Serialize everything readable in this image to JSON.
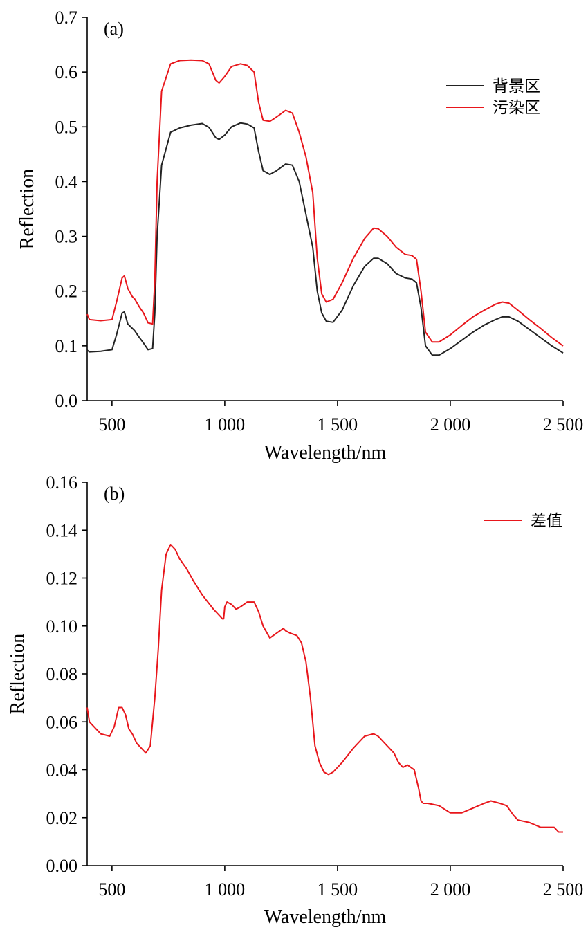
{
  "chart_data": [
    {
      "panel_label": "(a)",
      "type": "line",
      "xlabel": "Wavelength/nm",
      "ylabel": "Reflection",
      "xlim": [
        390,
        2500
      ],
      "ylim": [
        0,
        0.7
      ],
      "xticks": [
        500,
        1000,
        1500,
        2000,
        2500
      ],
      "xtick_labels": [
        "500",
        "1 000",
        "1 500",
        "2 000",
        "2 500"
      ],
      "yticks": [
        0,
        0.1,
        0.2,
        0.3,
        0.4,
        0.5,
        0.6,
        0.7
      ],
      "ytick_labels": [
        "0.0",
        "0.1",
        "0.2",
        "0.3",
        "0.4",
        "0.5",
        "0.6",
        "0.7"
      ],
      "grid": false,
      "legend_position": "top-right",
      "series": [
        {
          "name": "背景区",
          "color": "#222222",
          "x": [
            390,
            400,
            450,
            500,
            520,
            545,
            555,
            570,
            590,
            600,
            620,
            640,
            660,
            680,
            690,
            700,
            720,
            760,
            800,
            850,
            900,
            930,
            960,
            975,
            1000,
            1030,
            1070,
            1100,
            1130,
            1150,
            1170,
            1200,
            1230,
            1270,
            1300,
            1330,
            1360,
            1390,
            1410,
            1430,
            1450,
            1480,
            1520,
            1570,
            1620,
            1660,
            1680,
            1720,
            1760,
            1800,
            1830,
            1850,
            1870,
            1890,
            1920,
            1950,
            2000,
            2050,
            2100,
            2150,
            2200,
            2230,
            2260,
            2300,
            2350,
            2400,
            2450,
            2500
          ],
          "y": [
            0.092,
            0.089,
            0.09,
            0.093,
            0.12,
            0.16,
            0.162,
            0.14,
            0.132,
            0.128,
            0.116,
            0.105,
            0.093,
            0.095,
            0.16,
            0.3,
            0.43,
            0.49,
            0.498,
            0.503,
            0.506,
            0.499,
            0.48,
            0.477,
            0.485,
            0.5,
            0.507,
            0.505,
            0.498,
            0.455,
            0.42,
            0.413,
            0.42,
            0.432,
            0.43,
            0.4,
            0.34,
            0.28,
            0.2,
            0.16,
            0.145,
            0.143,
            0.165,
            0.21,
            0.245,
            0.26,
            0.26,
            0.25,
            0.232,
            0.224,
            0.222,
            0.215,
            0.17,
            0.1,
            0.083,
            0.083,
            0.095,
            0.11,
            0.125,
            0.138,
            0.148,
            0.153,
            0.153,
            0.145,
            0.13,
            0.115,
            0.1,
            0.087
          ]
        },
        {
          "name": "污染区",
          "color": "#e8161b",
          "x": [
            390,
            400,
            450,
            500,
            520,
            545,
            555,
            570,
            590,
            600,
            620,
            640,
            660,
            680,
            690,
            700,
            720,
            760,
            800,
            850,
            900,
            930,
            960,
            975,
            1000,
            1030,
            1070,
            1100,
            1130,
            1150,
            1170,
            1200,
            1230,
            1270,
            1300,
            1330,
            1360,
            1390,
            1410,
            1430,
            1450,
            1480,
            1520,
            1570,
            1620,
            1660,
            1680,
            1720,
            1760,
            1800,
            1830,
            1850,
            1870,
            1890,
            1920,
            1950,
            2000,
            2050,
            2100,
            2150,
            2200,
            2230,
            2260,
            2300,
            2350,
            2400,
            2450,
            2500
          ],
          "y": [
            0.158,
            0.148,
            0.146,
            0.148,
            0.18,
            0.224,
            0.228,
            0.205,
            0.19,
            0.186,
            0.172,
            0.16,
            0.142,
            0.14,
            0.22,
            0.4,
            0.565,
            0.615,
            0.621,
            0.622,
            0.621,
            0.615,
            0.585,
            0.58,
            0.592,
            0.61,
            0.615,
            0.612,
            0.6,
            0.545,
            0.512,
            0.51,
            0.518,
            0.53,
            0.525,
            0.49,
            0.445,
            0.38,
            0.26,
            0.195,
            0.18,
            0.185,
            0.215,
            0.26,
            0.296,
            0.315,
            0.314,
            0.3,
            0.28,
            0.267,
            0.265,
            0.258,
            0.2,
            0.125,
            0.107,
            0.107,
            0.12,
            0.137,
            0.153,
            0.165,
            0.176,
            0.18,
            0.178,
            0.165,
            0.148,
            0.132,
            0.115,
            0.1
          ]
        }
      ]
    },
    {
      "panel_label": "(b)",
      "type": "line",
      "xlabel": "Wavelength/nm",
      "ylabel": "Reflection",
      "xlim": [
        390,
        2500
      ],
      "ylim": [
        0,
        0.16
      ],
      "xticks": [
        500,
        1000,
        1500,
        2000,
        2500
      ],
      "xtick_labels": [
        "500",
        "1 000",
        "1 500",
        "2 000",
        "2 500"
      ],
      "yticks": [
        0,
        0.02,
        0.04,
        0.06,
        0.08,
        0.1,
        0.12,
        0.14,
        0.16
      ],
      "ytick_labels": [
        "0.00",
        "0.02",
        "0.04",
        "0.06",
        "0.08",
        "0.10",
        "0.12",
        "0.14",
        "0.16"
      ],
      "grid": false,
      "legend_position": "top-right",
      "series": [
        {
          "name": "差值",
          "color": "#e8161b",
          "x": [
            390,
            400,
            420,
            450,
            490,
            510,
            530,
            545,
            560,
            575,
            590,
            610,
            630,
            650,
            670,
            690,
            705,
            720,
            740,
            760,
            780,
            800,
            830,
            860,
            900,
            950,
            990,
            995,
            1000,
            1010,
            1030,
            1050,
            1070,
            1100,
            1130,
            1150,
            1170,
            1200,
            1230,
            1260,
            1270,
            1290,
            1320,
            1340,
            1360,
            1380,
            1400,
            1420,
            1440,
            1460,
            1480,
            1520,
            1570,
            1620,
            1660,
            1680,
            1720,
            1750,
            1770,
            1790,
            1810,
            1840,
            1860,
            1870,
            1880,
            1900,
            1950,
            2000,
            2050,
            2100,
            2150,
            2180,
            2220,
            2250,
            2280,
            2300,
            2350,
            2400,
            2440,
            2460,
            2480,
            2500
          ],
          "y": [
            0.066,
            0.06,
            0.058,
            0.055,
            0.054,
            0.058,
            0.066,
            0.066,
            0.063,
            0.057,
            0.055,
            0.051,
            0.049,
            0.047,
            0.05,
            0.07,
            0.09,
            0.115,
            0.13,
            0.134,
            0.132,
            0.128,
            0.124,
            0.119,
            0.113,
            0.107,
            0.103,
            0.103,
            0.108,
            0.11,
            0.109,
            0.107,
            0.108,
            0.11,
            0.11,
            0.106,
            0.1,
            0.095,
            0.097,
            0.099,
            0.098,
            0.097,
            0.096,
            0.093,
            0.085,
            0.07,
            0.05,
            0.043,
            0.039,
            0.038,
            0.039,
            0.043,
            0.049,
            0.054,
            0.055,
            0.054,
            0.05,
            0.047,
            0.043,
            0.041,
            0.042,
            0.04,
            0.032,
            0.027,
            0.026,
            0.026,
            0.025,
            0.022,
            0.022,
            0.024,
            0.026,
            0.027,
            0.026,
            0.025,
            0.021,
            0.019,
            0.018,
            0.016,
            0.016,
            0.016,
            0.014,
            0.014
          ]
        }
      ]
    }
  ]
}
